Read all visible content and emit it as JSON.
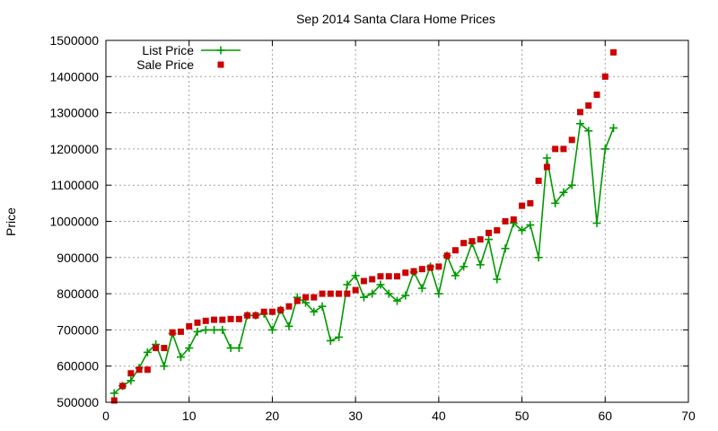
{
  "chart_data": {
    "type": "line",
    "title": "Sep 2014 Santa Clara Home Prices",
    "xlabel": "",
    "ylabel": "Price",
    "xlim": [
      0,
      70
    ],
    "ylim": [
      500000,
      1500000
    ],
    "xticks": [
      0,
      10,
      20,
      30,
      40,
      50,
      60,
      70
    ],
    "yticks": [
      500000,
      600000,
      700000,
      800000,
      900000,
      1000000,
      1100000,
      1200000,
      1300000,
      1400000,
      1500000
    ],
    "grid": true,
    "legend_position": "top-left",
    "x": [
      1,
      2,
      3,
      4,
      5,
      6,
      7,
      8,
      9,
      10,
      11,
      12,
      13,
      14,
      15,
      16,
      17,
      18,
      19,
      20,
      21,
      22,
      23,
      24,
      25,
      26,
      27,
      28,
      29,
      30,
      31,
      32,
      33,
      34,
      35,
      36,
      37,
      38,
      39,
      40,
      41,
      42,
      43,
      44,
      45,
      46,
      47,
      48,
      49,
      50,
      51,
      52,
      53,
      54,
      55,
      56,
      57,
      58,
      59,
      60,
      61
    ],
    "series": [
      {
        "name": "List Price",
        "style": "linespoints",
        "color": "#009900",
        "marker": "plus",
        "values": [
          525000,
          545000,
          560000,
          595000,
          638000,
          660000,
          600000,
          690000,
          625000,
          650000,
          695000,
          700000,
          700000,
          700000,
          650000,
          650000,
          740000,
          740000,
          745000,
          700000,
          755000,
          710000,
          790000,
          775000,
          750000,
          765000,
          670000,
          680000,
          825000,
          850000,
          790000,
          800000,
          825000,
          800000,
          780000,
          795000,
          860000,
          815000,
          875000,
          800000,
          905000,
          850000,
          875000,
          940000,
          880000,
          950000,
          840000,
          925000,
          995000,
          975000,
          990000,
          900000,
          1175000,
          1050000,
          1080000,
          1100000,
          1270000,
          1250000,
          995000,
          1200000,
          1258000
        ]
      },
      {
        "name": "Sale Price",
        "style": "points",
        "color": "#cc0000",
        "marker": "square",
        "values": [
          505000,
          545000,
          580000,
          590000,
          590000,
          650000,
          650000,
          693000,
          695000,
          710000,
          720000,
          725000,
          728000,
          728000,
          730000,
          730000,
          740000,
          740000,
          750000,
          750000,
          755000,
          765000,
          780000,
          790000,
          790000,
          800000,
          800000,
          800000,
          800000,
          810000,
          835000,
          840000,
          848000,
          848000,
          848000,
          858000,
          862000,
          868000,
          872000,
          875000,
          905000,
          920000,
          940000,
          945000,
          950000,
          968000,
          975000,
          1000000,
          1005000,
          1043000,
          1050000,
          1112000,
          1150000,
          1200000,
          1200000,
          1225000,
          1302000,
          1320000,
          1350000,
          1400000,
          1467000
        ]
      }
    ]
  }
}
